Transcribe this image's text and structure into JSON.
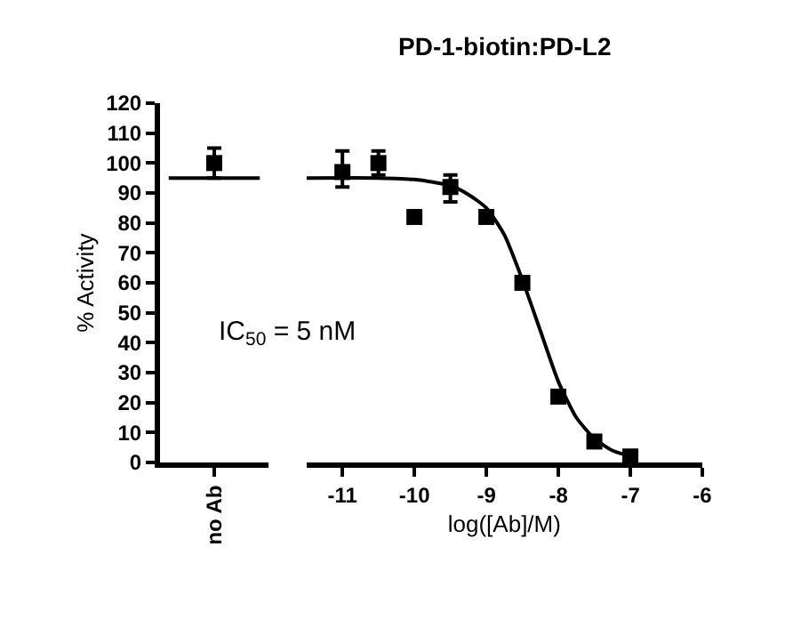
{
  "chart_data": [
    {
      "type": "scatter",
      "ylabel": "% Activity",
      "categories": [
        "no Ab"
      ],
      "ylim": [
        0,
        120
      ],
      "yticks": [
        0,
        10,
        20,
        30,
        40,
        50,
        60,
        70,
        80,
        90,
        100,
        110,
        120
      ],
      "marker": "square",
      "series": [
        {
          "color": "#000000",
          "values": [
            100
          ],
          "errors": [
            5
          ]
        }
      ],
      "ref_lines": [
        {
          "axis": "y",
          "value": 95,
          "color": "#000000"
        }
      ],
      "annotations": [
        "IC$_{50}$ = 5 nM"
      ]
    },
    {
      "type": "scatter",
      "title": "PD-1-biotin:PD-L2",
      "xlabel": "log([Ab]/M)",
      "xlim": [
        -11.5,
        -6
      ],
      "xticks": [
        -11,
        -10,
        -9,
        -8,
        -7,
        -6
      ],
      "ylim": [
        0,
        120
      ],
      "tick_labels": "x",
      "marker": "square",
      "series": [
        {
          "color": "#000000",
          "x": [
            -11,
            -10.5,
            -10,
            -9.5,
            -9,
            -8.5,
            -8,
            -7.5,
            -7
          ],
          "values": [
            97,
            100,
            82,
            92,
            82,
            60,
            22,
            7,
            2
          ],
          "errors": [
            [
              92,
              104
            ],
            [
              96,
              104
            ],
            null,
            [
              87,
              96
            ],
            null,
            null,
            null,
            null,
            null
          ]
        },
        {
          "type": "line",
          "marker": "none",
          "color": "#000000",
          "x": [
            -11.5,
            -10.5,
            -10,
            -9.5,
            -9.25,
            -9,
            -8.75,
            -8.5,
            -8.25,
            -8,
            -7.75,
            -7.5,
            -7.25,
            -7
          ],
          "values": [
            95,
            95,
            94.5,
            92.5,
            89.5,
            85,
            76,
            61,
            44,
            27,
            15,
            8,
            4,
            2
          ]
        }
      ]
    }
  ]
}
